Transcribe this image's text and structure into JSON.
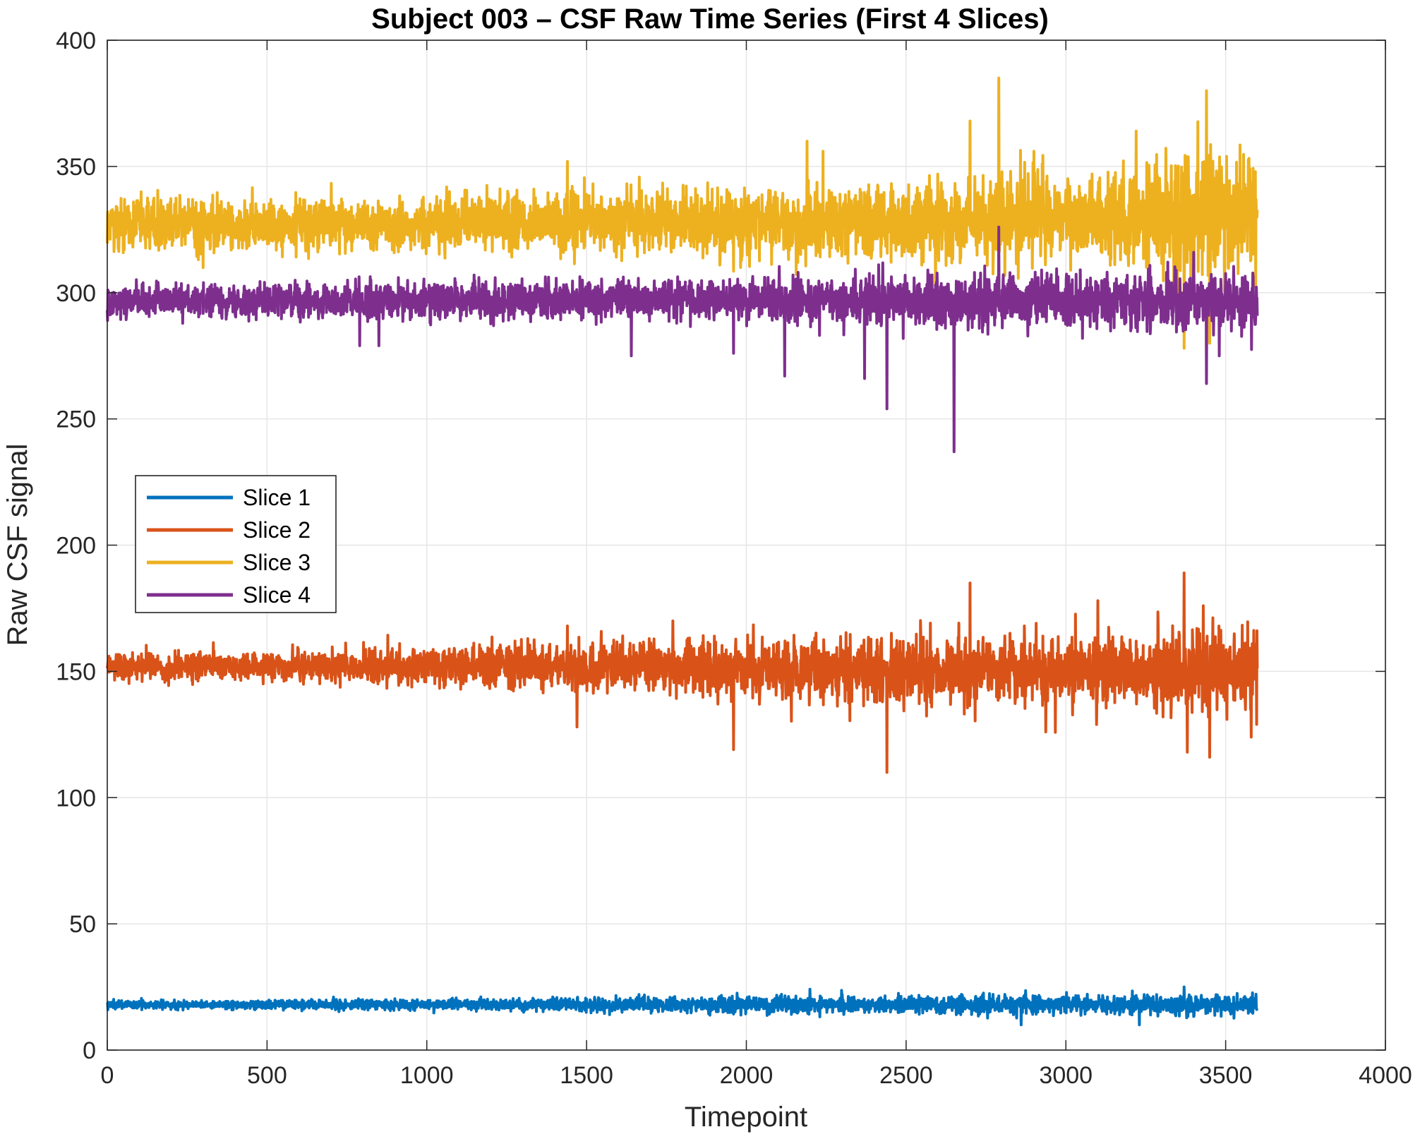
{
  "chart_data": {
    "type": "line",
    "title": "Subject 003 – CSF Raw Time Series (First 4 Slices)",
    "xlabel": "Timepoint",
    "ylabel": "Raw CSF signal",
    "xlim": [
      0,
      4000
    ],
    "ylim": [
      0,
      400
    ],
    "xticks": [
      "0",
      "500",
      "1000",
      "1500",
      "2000",
      "2500",
      "3000",
      "3500",
      "4000"
    ],
    "yticks": [
      "0",
      "50",
      "100",
      "150",
      "200",
      "250",
      "300",
      "350",
      "400"
    ],
    "grid": true,
    "legend_position": "center-left",
    "n_points": 3600,
    "series": [
      {
        "name": "Slice 1",
        "color": "#0072BD",
        "profile": [
          [
            0,
            18,
            0.8
          ],
          [
            1000,
            18,
            1.0
          ],
          [
            2000,
            18,
            1.6
          ],
          [
            3000,
            18,
            1.8
          ],
          [
            3600,
            18,
            2.0
          ]
        ],
        "spikes": [
          [
            3370,
            25
          ],
          [
            2860,
            10
          ],
          [
            3230,
            10
          ]
        ]
      },
      {
        "name": "Slice 2",
        "color": "#D95319",
        "profile": [
          [
            0,
            152,
            2.5
          ],
          [
            1000,
            152,
            3.5
          ],
          [
            1700,
            152,
            5
          ],
          [
            2500,
            150,
            6.5
          ],
          [
            3300,
            150,
            7.5
          ],
          [
            3600,
            150,
            8
          ]
        ],
        "spikes": [
          [
            2700,
            185
          ],
          [
            3370,
            189
          ],
          [
            3430,
            176
          ],
          [
            3100,
            178
          ],
          [
            1770,
            170
          ],
          [
            2440,
            110
          ],
          [
            1960,
            119
          ],
          [
            3380,
            118
          ],
          [
            3450,
            116
          ],
          [
            1440,
            168
          ],
          [
            1470,
            128
          ],
          [
            2870,
            168
          ]
        ]
      },
      {
        "name": "Slice 3",
        "color": "#EDB120",
        "profile": [
          [
            0,
            327,
            5
          ],
          [
            1000,
            327,
            5
          ],
          [
            1500,
            328,
            6
          ],
          [
            2500,
            328,
            7.5
          ],
          [
            3200,
            330,
            9
          ],
          [
            3400,
            330,
            14
          ],
          [
            3600,
            330,
            10
          ]
        ],
        "spikes": [
          [
            3370,
            392
          ],
          [
            2790,
            385
          ],
          [
            3440,
            380
          ],
          [
            2700,
            368
          ],
          [
            3220,
            364
          ],
          [
            2190,
            360
          ],
          [
            3370,
            278
          ],
          [
            1440,
            352
          ],
          [
            2240,
            356
          ],
          [
            2900,
            356
          ],
          [
            3450,
            280
          ]
        ]
      },
      {
        "name": "Slice 4",
        "color": "#7E2F8E",
        "profile": [
          [
            0,
            297,
            3
          ],
          [
            1000,
            297,
            3.5
          ],
          [
            2000,
            297,
            4
          ],
          [
            2800,
            297,
            5
          ],
          [
            3600,
            297,
            5
          ]
        ],
        "spikes": [
          [
            2650,
            237
          ],
          [
            2440,
            254
          ],
          [
            2370,
            266
          ],
          [
            2120,
            267
          ],
          [
            3440,
            264
          ],
          [
            1960,
            276
          ],
          [
            3480,
            275
          ],
          [
            1640,
            275
          ],
          [
            2790,
            326
          ],
          [
            3400,
            316
          ],
          [
            790,
            279
          ],
          [
            850,
            279
          ]
        ]
      }
    ]
  }
}
